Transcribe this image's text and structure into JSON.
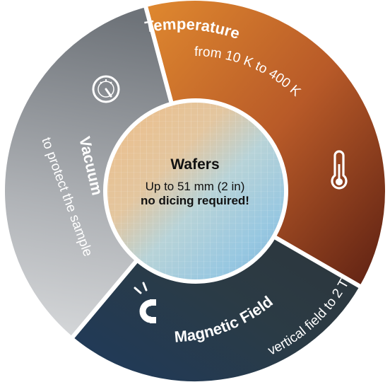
{
  "segments": {
    "temperature": {
      "title": "Temperature",
      "subtitle": "from 10 K to 400 K",
      "icon": "thermometer-icon"
    },
    "vacuum": {
      "title": "Vacuum",
      "subtitle": "to protect the sample",
      "icon": "pressure-gauge-icon"
    },
    "magnetic": {
      "title": "Magnetic Field",
      "subtitle": "vertical field to 2 T",
      "icon": "magnet-icon"
    }
  },
  "center": {
    "title": "Wafers",
    "subtitle": "Up to 51 mm (2 in)",
    "note": "no dicing required!"
  },
  "colors": {
    "temperature": "#c8692a",
    "vacuum": "#8a8e94",
    "magnetic": "#233341",
    "ring_border": "#ffffff"
  }
}
